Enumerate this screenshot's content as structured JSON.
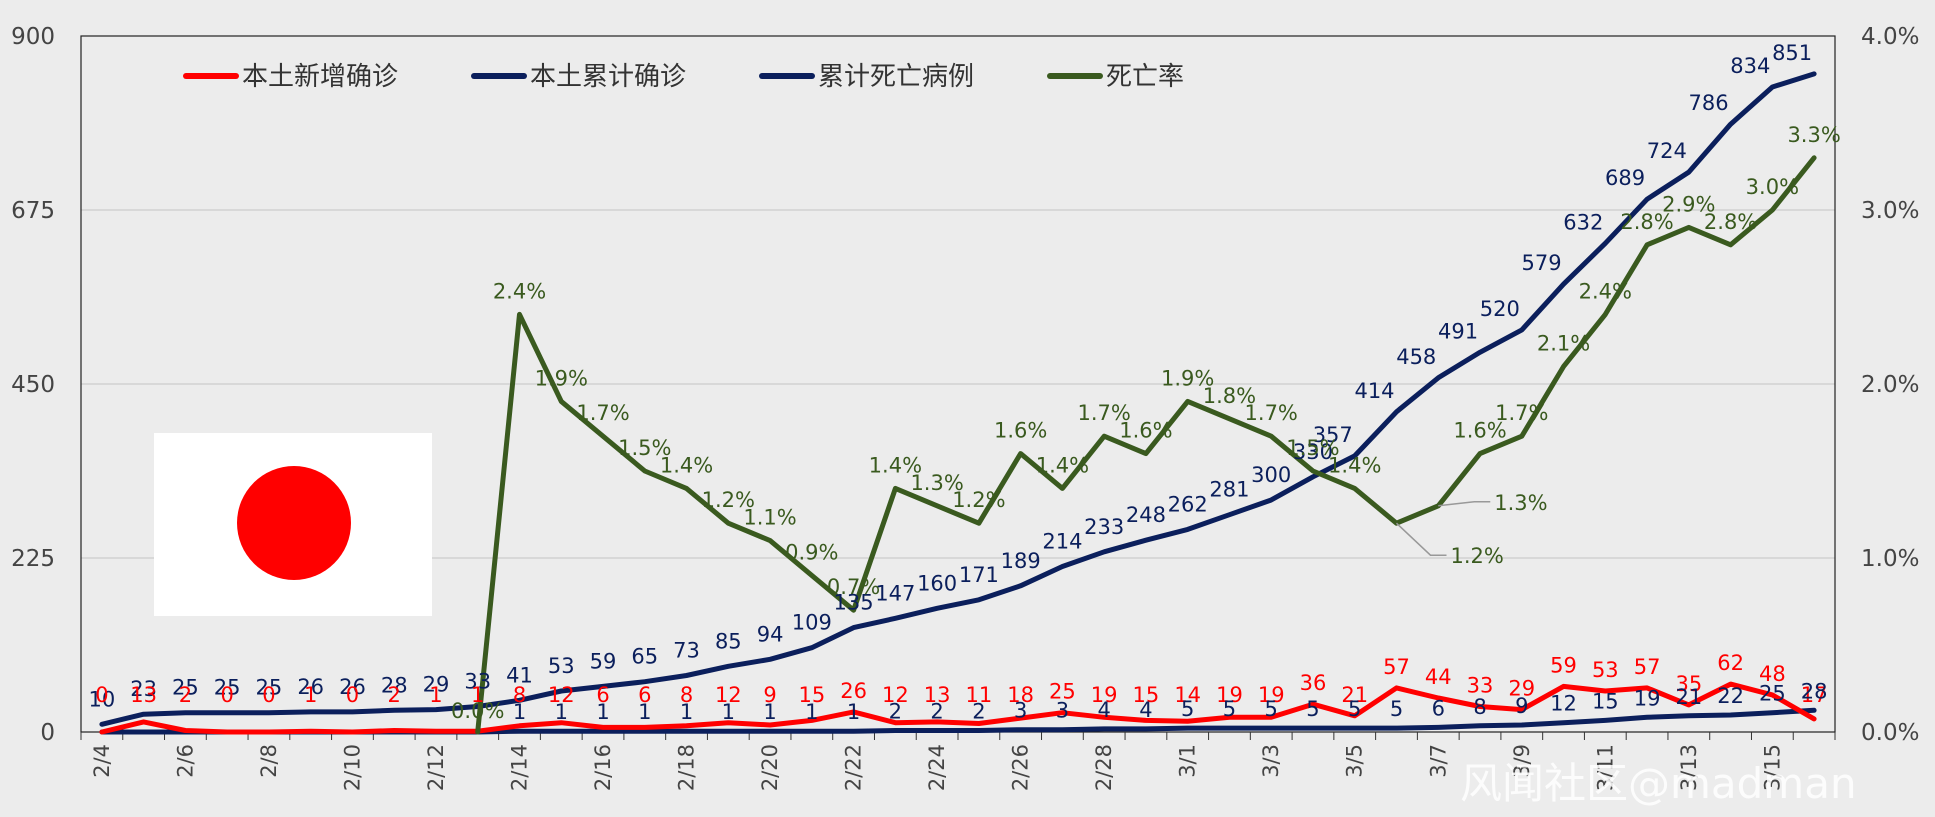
{
  "chart_data": {
    "type": "line",
    "title": "",
    "categories": [
      "2/4",
      "2/5",
      "2/6",
      "2/7",
      "2/8",
      "2/9",
      "2/10",
      "2/11",
      "2/12",
      "2/13",
      "2/14",
      "2/15",
      "2/16",
      "2/17",
      "2/18",
      "2/19",
      "2/20",
      "2/21",
      "2/22",
      "2/23",
      "2/24",
      "2/25",
      "2/26",
      "2/27",
      "2/28",
      "2/29",
      "3/1",
      "3/2",
      "3/3",
      "3/4",
      "3/5",
      "3/6",
      "3/7",
      "3/8",
      "3/9",
      "3/10",
      "3/11",
      "3/12",
      "3/13",
      "3/14",
      "3/15",
      "3/16"
    ],
    "x_tick_labels": [
      "2/4",
      "2/6",
      "2/8",
      "2/10",
      "2/12",
      "2/14",
      "2/16",
      "2/18",
      "2/20",
      "2/22",
      "2/24",
      "2/26",
      "2/28",
      "3/1",
      "3/3",
      "3/5",
      "3/7",
      "3/9",
      "3/11",
      "3/13",
      "3/15"
    ],
    "left_axis": {
      "ylim": [
        0,
        900
      ],
      "ticks": [
        "0",
        "225",
        "450",
        "675",
        "900"
      ]
    },
    "right_axis": {
      "ylim": [
        0,
        4.0
      ],
      "ticks": [
        "0.0%",
        "1.0%",
        "2.0%",
        "3.0%",
        "4.0%"
      ]
    },
    "series": [
      {
        "name": "本土新增确诊",
        "color": "#ff0000",
        "axis": "left",
        "values": [
          0,
          13,
          2,
          0,
          0,
          1,
          0,
          2,
          1,
          1,
          8,
          12,
          6,
          6,
          8,
          12,
          9,
          15,
          26,
          12,
          13,
          11,
          18,
          25,
          19,
          15,
          14,
          19,
          19,
          36,
          21,
          57,
          44,
          33,
          29,
          59,
          53,
          57,
          35,
          62,
          48,
          17
        ]
      },
      {
        "name": "本土累计确诊",
        "color": "#0b1f5c",
        "axis": "left",
        "values": [
          10,
          23,
          25,
          25,
          25,
          26,
          26,
          28,
          29,
          33,
          41,
          53,
          59,
          65,
          73,
          85,
          94,
          109,
          135,
          147,
          160,
          171,
          189,
          214,
          233,
          248,
          262,
          281,
          300,
          330,
          357,
          414,
          458,
          491,
          520,
          579,
          632,
          689,
          724,
          786,
          834,
          851
        ]
      },
      {
        "name": "累计死亡病例",
        "color": "#0b1f5c",
        "axis": "left",
        "values": [
          0,
          0,
          0,
          0,
          0,
          0,
          0,
          0,
          0,
          0,
          1,
          1,
          1,
          1,
          1,
          1,
          1,
          1,
          1,
          2,
          2,
          2,
          3,
          3,
          4,
          4,
          5,
          5,
          5,
          5,
          5,
          5,
          6,
          8,
          9,
          12,
          15,
          19,
          21,
          22,
          25,
          28
        ]
      },
      {
        "name": "死亡率",
        "color": "#3a5a1f",
        "axis": "right",
        "values": [
          null,
          null,
          null,
          null,
          null,
          null,
          null,
          null,
          null,
          0.0,
          2.4,
          1.9,
          1.7,
          1.5,
          1.4,
          1.2,
          1.1,
          0.9,
          0.7,
          1.4,
          1.3,
          1.2,
          1.6,
          1.4,
          1.7,
          1.6,
          1.9,
          1.8,
          1.7,
          1.5,
          1.4,
          1.2,
          1.3,
          1.6,
          1.7,
          2.1,
          2.4,
          2.8,
          2.9,
          2.8,
          3.0,
          3.3
        ],
        "labels": [
          null,
          null,
          null,
          null,
          null,
          null,
          null,
          null,
          null,
          "0.0%",
          "2.4%",
          "1.9%",
          "1.7%",
          "1.5%",
          "1.4%",
          "1.2%",
          "1.1%",
          "0.9%",
          "0.7%",
          "1.4%",
          "1.3%",
          "1.2%",
          "1.6%",
          "1.4%",
          "1.7%",
          "1.6%",
          "1.9%",
          "1.8%",
          "1.7%",
          "1.5%",
          "1.4%",
          "1.2%",
          "1.3%",
          "1.6%",
          "1.7%",
          "2.1%",
          "2.4%",
          "2.8%",
          "2.9%",
          "2.8%",
          "3.0%",
          "3.3%"
        ]
      }
    ]
  },
  "watermark": "风闻社区@madman",
  "colors": {
    "red": "#ff0000",
    "navy": "#0b1f5c",
    "green": "#3a5a1f"
  }
}
